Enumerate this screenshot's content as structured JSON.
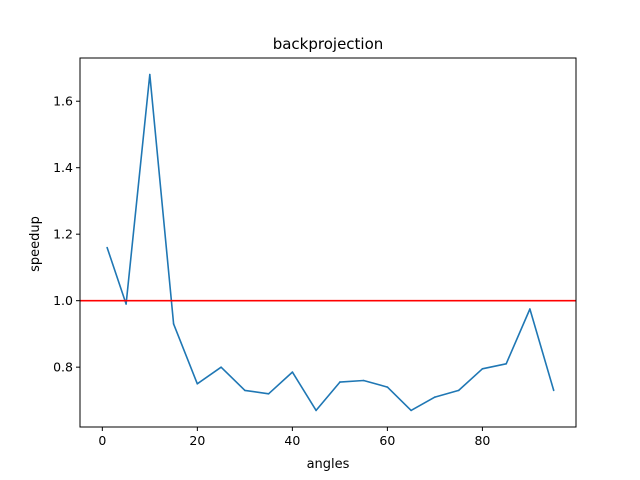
{
  "chart_data": {
    "type": "line",
    "title": "backprojection",
    "xlabel": "angles",
    "ylabel": "speedup",
    "xlim": [
      -4.7,
      99.7
    ],
    "ylim": [
      0.62,
      1.73
    ],
    "xticks": [
      0,
      20,
      40,
      60,
      80
    ],
    "yticks": [
      0.8,
      1.0,
      1.2,
      1.4,
      1.6
    ],
    "ytick_labels": [
      "0.8",
      "1.0",
      "1.2",
      "1.4",
      "1.6"
    ],
    "grid": false,
    "series": [
      {
        "color": "#1f77b4",
        "x": [
          1,
          5,
          10,
          15,
          20,
          25,
          30,
          35,
          40,
          45,
          50,
          55,
          60,
          65,
          70,
          75,
          80,
          85,
          90,
          95
        ],
        "y": [
          1.16,
          0.99,
          1.68,
          0.93,
          0.75,
          0.8,
          0.73,
          0.72,
          0.785,
          0.67,
          0.755,
          0.76,
          0.74,
          0.67,
          0.71,
          0.73,
          0.795,
          0.81,
          0.975,
          0.73
        ]
      }
    ],
    "reference_lines": [
      {
        "orientation": "horizontal",
        "y": 1.0,
        "color": "#ff0000"
      }
    ]
  }
}
